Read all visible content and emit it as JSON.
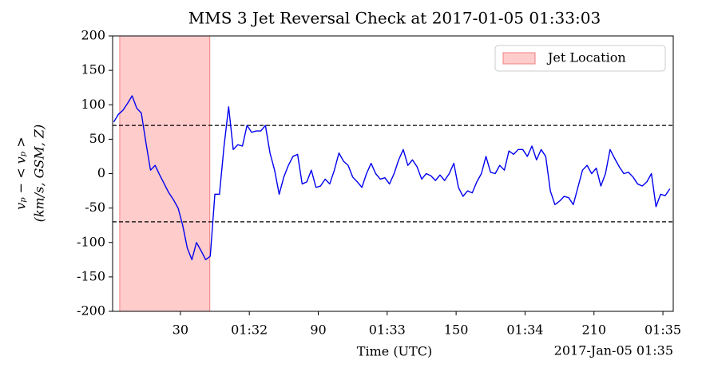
{
  "chart_data": {
    "type": "line",
    "title": "MMS 3 Jet Reversal Check at 2017-01-05 01:33:03",
    "xlabel": "Time (UTC)",
    "ylabel": [
      "vₚ − < vₚ >",
      "(km/s, GSM, Z)"
    ],
    "x_offset_label": "2017-Jan-05 01:35",
    "color": "#0000ee",
    "x": [
      1,
      3,
      5,
      7,
      9,
      11,
      13,
      15,
      17,
      19,
      21,
      23,
      25,
      27,
      29,
      31,
      33,
      35,
      37,
      39,
      41,
      43,
      45,
      47,
      49,
      51,
      53,
      55,
      57,
      59,
      61,
      63,
      65,
      67,
      69,
      71,
      73,
      75,
      77,
      79,
      81,
      83,
      85,
      87,
      89,
      91,
      93,
      95,
      97,
      99,
      101,
      103,
      105,
      107,
      109,
      111,
      113,
      115,
      117,
      119,
      121,
      123,
      125,
      127,
      129,
      131,
      133,
      135,
      137,
      139,
      141,
      143,
      145,
      147,
      149,
      151,
      153,
      155,
      157,
      159,
      161,
      163,
      165,
      167,
      169,
      171,
      173,
      175,
      177,
      179,
      181,
      183,
      185,
      187,
      189,
      191,
      193,
      195,
      197,
      199,
      201,
      203,
      205,
      207,
      209,
      211,
      213,
      215,
      217,
      219,
      221,
      223,
      225,
      227,
      229,
      231,
      233,
      235,
      237,
      239,
      241,
      243
    ],
    "values": [
      75,
      86,
      92,
      102,
      113,
      95,
      88,
      45,
      5,
      12,
      -2,
      -15,
      -28,
      -38,
      -50,
      -75,
      -108,
      -125,
      -100,
      -112,
      -125,
      -120,
      -30,
      -30,
      40,
      97,
      35,
      42,
      40,
      70,
      60,
      62,
      62,
      70,
      30,
      5,
      -30,
      -5,
      12,
      25,
      28,
      -15,
      -12,
      5,
      -20,
      -18,
      -8,
      -15,
      5,
      30,
      18,
      12,
      -5,
      -12,
      -20,
      0,
      15,
      0,
      -8,
      -6,
      -15,
      0,
      20,
      35,
      12,
      20,
      10,
      -8,
      0,
      -3,
      -10,
      -2,
      -10,
      0,
      15,
      -20,
      -33,
      -25,
      -28,
      -12,
      0,
      25,
      2,
      0,
      12,
      5,
      33,
      28,
      35,
      35,
      25,
      40,
      20,
      35,
      25,
      -25,
      -45,
      -40,
      -33,
      -35,
      -45,
      -20,
      5,
      12,
      0,
      8,
      -18,
      0,
      35,
      22,
      10,
      0,
      2,
      -5,
      -15,
      -18,
      -12,
      0,
      -48,
      -30,
      -32,
      -22
    ],
    "spans": [
      {
        "label": "Jet Location",
        "x": [
          3.6,
          42.8
        ],
        "color": "#ffcccc",
        "edge": "#f08080"
      }
    ],
    "hlines": [
      70,
      -70
    ],
    "xlim": [
      0.5,
      244.5
    ],
    "ylim": [
      -200,
      200
    ],
    "xticks": [
      30,
      {
        "value": 60,
        "label": "01:32"
      },
      90,
      {
        "value": 120,
        "label": "01:33"
      },
      150,
      {
        "value": 180,
        "label": "01:34"
      },
      210,
      {
        "value": 240,
        "label": "01:35"
      }
    ],
    "yticks": [
      -200,
      -150,
      -100,
      -50,
      0,
      50,
      100,
      150,
      200
    ],
    "legend": "upper right"
  }
}
